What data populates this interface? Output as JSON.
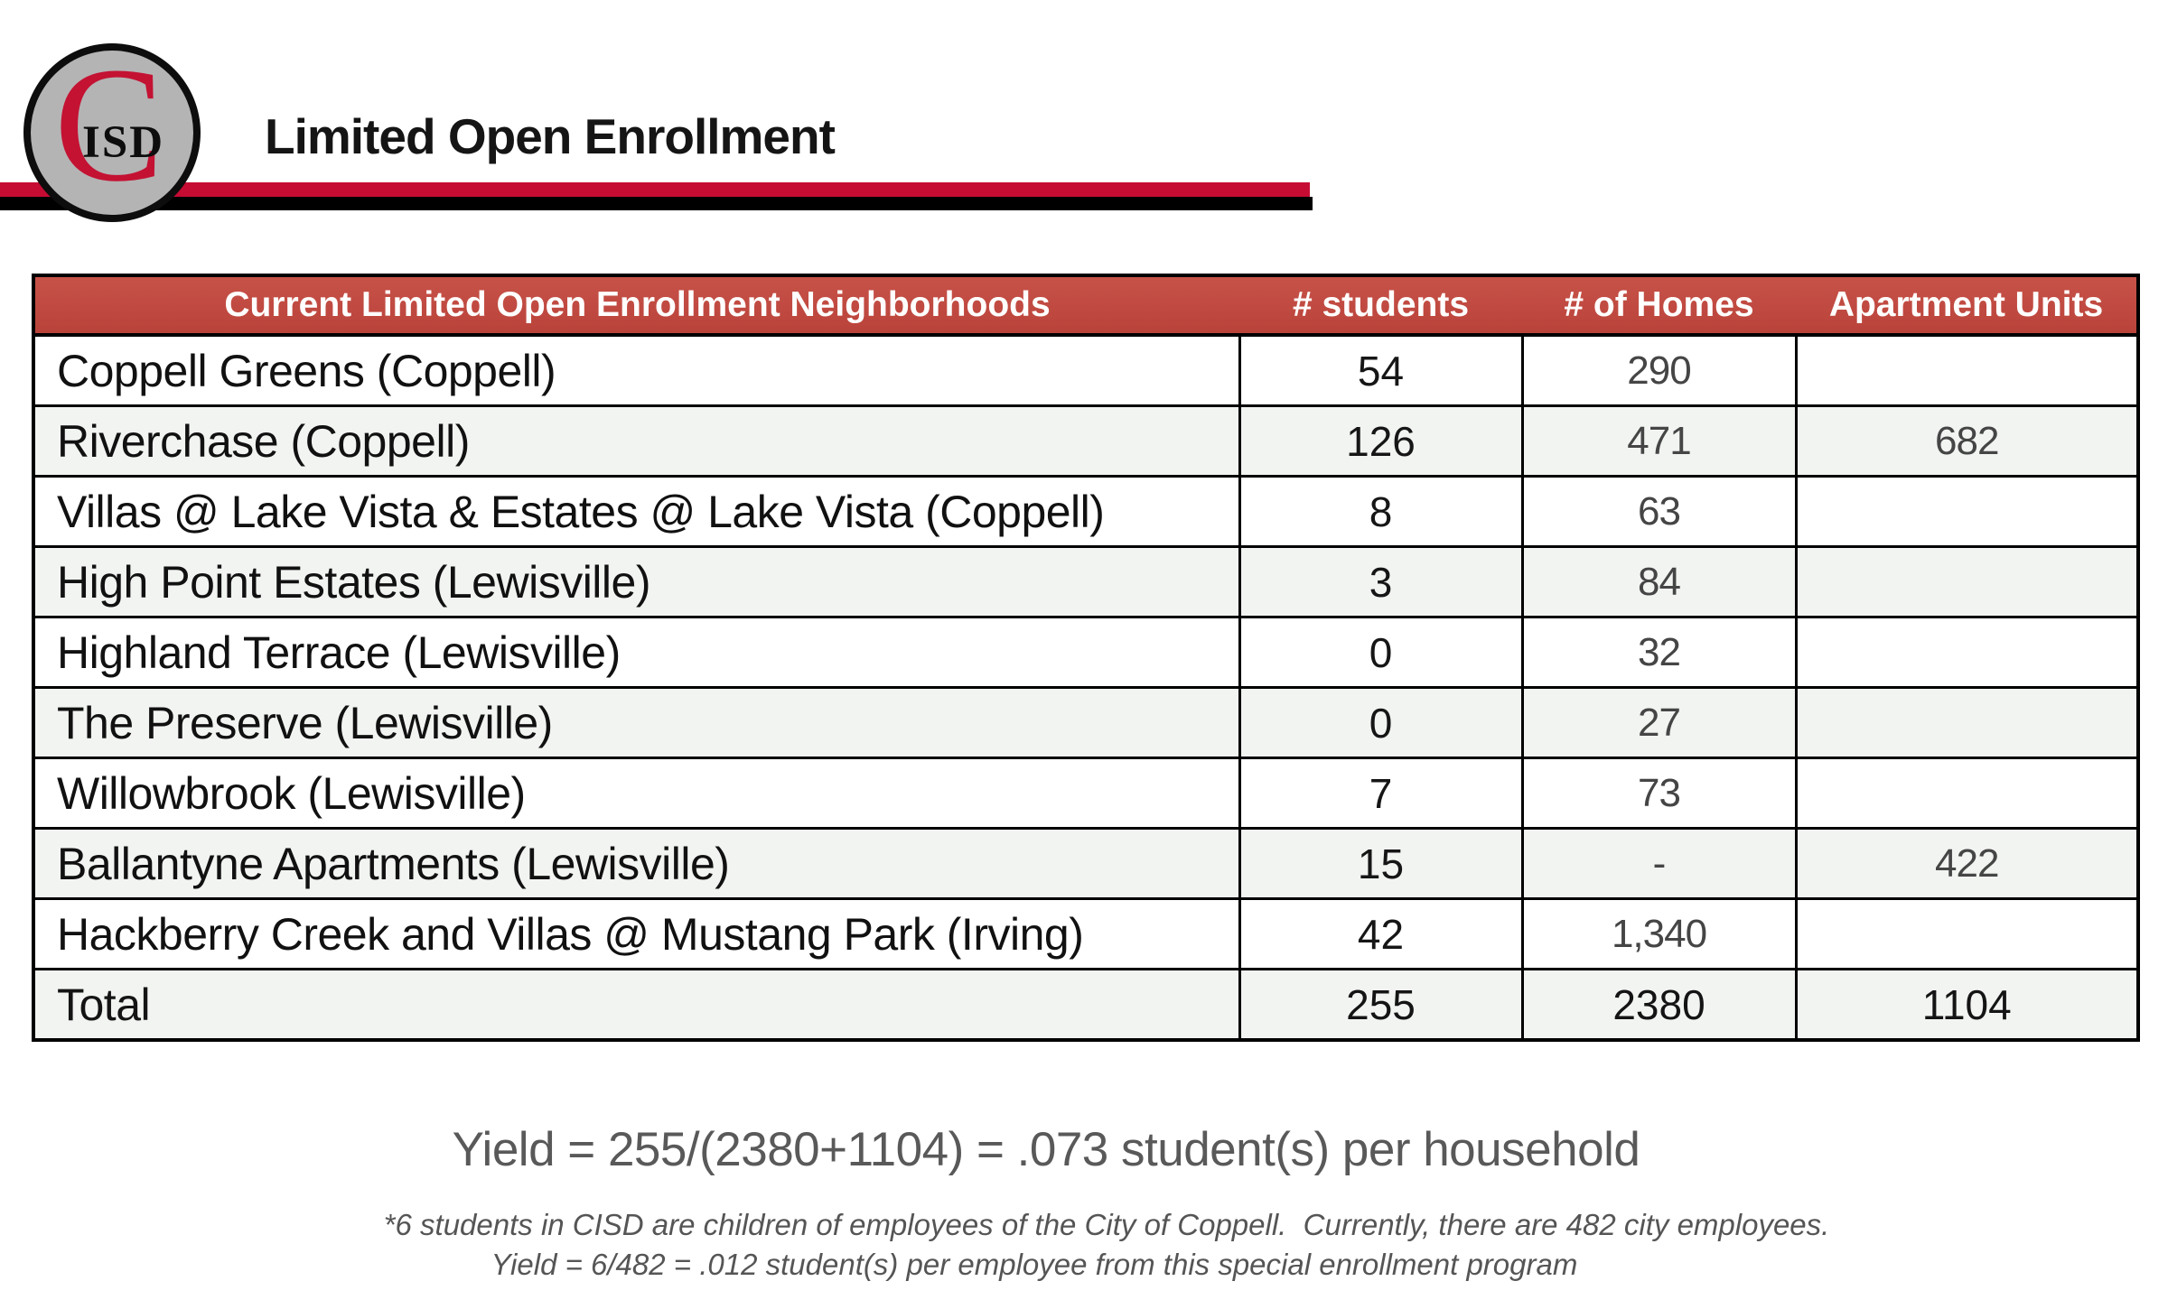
{
  "logo": {
    "c_letter": "C",
    "isd_text": "ISD"
  },
  "header": {
    "title": "Limited Open Enrollment"
  },
  "colors": {
    "brand_red": "#C60C33",
    "brand_black": "#000000",
    "table_header_red": "#C04A41",
    "band_row": "#F1F4F1",
    "summary_gray": "#595959"
  },
  "table": {
    "headers": {
      "neighborhoods": "Current Limited Open Enrollment Neighborhoods",
      "students": "# students",
      "homes": "# of Homes",
      "apartments": "Apartment Units"
    },
    "rows": [
      {
        "name": "Coppell Greens (Coppell)",
        "students": "54",
        "homes": "290",
        "apartments": ""
      },
      {
        "name": "Riverchase (Coppell)",
        "students": "126",
        "homes": "471",
        "apartments": "682"
      },
      {
        "name": "Villas @ Lake Vista & Estates @ Lake Vista (Coppell)",
        "students": "8",
        "homes": "63",
        "apartments": ""
      },
      {
        "name": "High Point Estates (Lewisville)",
        "students": "3",
        "homes": "84",
        "apartments": ""
      },
      {
        "name": "Highland Terrace (Lewisville)",
        "students": "0",
        "homes": "32",
        "apartments": ""
      },
      {
        "name": "The Preserve (Lewisville)",
        "students": "0",
        "homes": "27",
        "apartments": ""
      },
      {
        "name": "Willowbrook (Lewisville)",
        "students": "7",
        "homes": "73",
        "apartments": ""
      },
      {
        "name": "Ballantyne Apartments (Lewisville)",
        "students": "15",
        "homes": "-",
        "apartments": "422"
      },
      {
        "name": "Hackberry Creek and Villas @ Mustang Park (Irving)",
        "students": "42",
        "homes": "1,340",
        "apartments": ""
      },
      {
        "name": "Total",
        "students": "255",
        "homes": "2380",
        "apartments": "1104"
      }
    ]
  },
  "summary": {
    "yield_line": "Yield = 255/(2380+1104) = .073 student(s) per household",
    "footnote_line1": "*6 students in CISD are children of employees of the City of Coppell.  Currently, there are 482 city employees.",
    "footnote_line2": "Yield = 6/482 = .012 student(s) per employee from this special enrollment program"
  }
}
